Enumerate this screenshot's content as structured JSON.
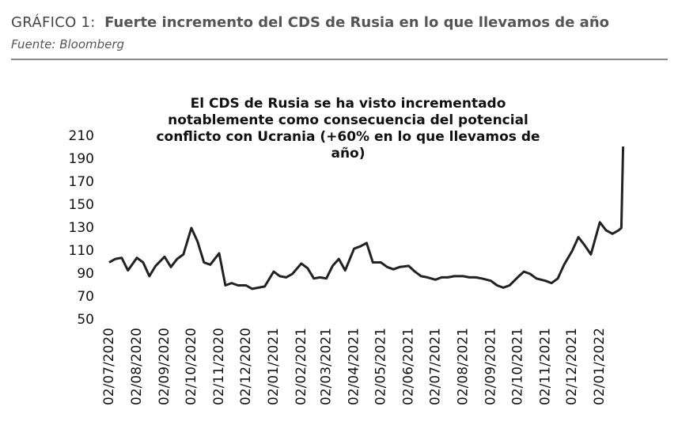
{
  "header": {
    "label": "GRÁFICO 1:",
    "title": "Fuerte incremento del CDS de Rusia en lo que llevamos de año",
    "source": "Fuente: Bloomberg"
  },
  "chart_data": {
    "type": "line",
    "title": "El CDS de Rusia se ha visto incrementado notablemente como consecuencia del potencial conflicto con Ucrania (+60% en lo que llevamos de año)",
    "x": [
      "02/07/2020",
      "09/07/2020",
      "16/07/2020",
      "23/07/2020",
      "02/08/2020",
      "09/08/2020",
      "16/08/2020",
      "23/08/2020",
      "02/09/2020",
      "09/09/2020",
      "16/09/2020",
      "23/09/2020",
      "02/10/2020",
      "09/10/2020",
      "16/10/2020",
      "23/10/2020",
      "02/11/2020",
      "09/11/2020",
      "16/11/2020",
      "23/11/2020",
      "02/12/2020",
      "09/12/2020",
      "16/12/2020",
      "23/12/2020",
      "02/01/2021",
      "09/01/2021",
      "16/01/2021",
      "23/01/2021",
      "02/02/2021",
      "09/02/2021",
      "16/02/2021",
      "23/02/2021",
      "02/03/2021",
      "09/03/2021",
      "16/03/2021",
      "23/03/2021",
      "02/04/2021",
      "09/04/2021",
      "16/04/2021",
      "23/04/2021",
      "02/05/2021",
      "09/05/2021",
      "16/05/2021",
      "23/05/2021",
      "02/06/2021",
      "09/06/2021",
      "16/06/2021",
      "23/06/2021",
      "02/07/2021",
      "09/07/2021",
      "16/07/2021",
      "23/07/2021",
      "02/08/2021",
      "09/08/2021",
      "16/08/2021",
      "23/08/2021",
      "02/09/2021",
      "09/09/2021",
      "16/09/2021",
      "23/09/2021",
      "02/10/2021",
      "09/10/2021",
      "16/10/2021",
      "23/10/2021",
      "02/11/2021",
      "09/11/2021",
      "16/11/2021",
      "23/11/2021",
      "02/12/2021",
      "09/12/2021",
      "16/12/2021",
      "23/12/2021",
      "02/01/2022",
      "09/01/2022",
      "16/01/2022",
      "23/01/2022",
      "26/01/2022",
      "28/01/2022"
    ],
    "values": [
      100,
      103,
      104,
      93,
      104,
      100,
      88,
      97,
      105,
      96,
      103,
      107,
      130,
      118,
      100,
      98,
      108,
      80,
      82,
      80,
      80,
      77,
      78,
      79,
      92,
      88,
      87,
      90,
      99,
      95,
      86,
      87,
      86,
      97,
      103,
      93,
      112,
      114,
      117,
      100,
      100,
      96,
      94,
      96,
      97,
      92,
      88,
      87,
      85,
      87,
      87,
      88,
      88,
      87,
      87,
      86,
      84,
      80,
      78,
      80,
      87,
      92,
      90,
      86,
      84,
      82,
      86,
      98,
      110,
      122,
      115,
      107,
      135,
      128,
      125,
      128,
      130,
      201
    ],
    "color": "#222222",
    "xlim": [
      "02/07/2020",
      "31/01/2022"
    ],
    "xticks": [
      "02/07/2020",
      "02/08/2020",
      "02/09/2020",
      "02/10/2020",
      "02/11/2020",
      "02/12/2020",
      "02/01/2021",
      "02/02/2021",
      "02/03/2021",
      "02/04/2021",
      "02/05/2021",
      "02/06/2021",
      "02/07/2021",
      "02/08/2021",
      "02/09/2021",
      "02/10/2021",
      "02/11/2021",
      "02/12/2021",
      "02/01/2022"
    ],
    "ylim": [
      50,
      210
    ],
    "yticks": [
      50,
      70,
      90,
      110,
      130,
      150,
      170,
      190,
      210
    ]
  }
}
